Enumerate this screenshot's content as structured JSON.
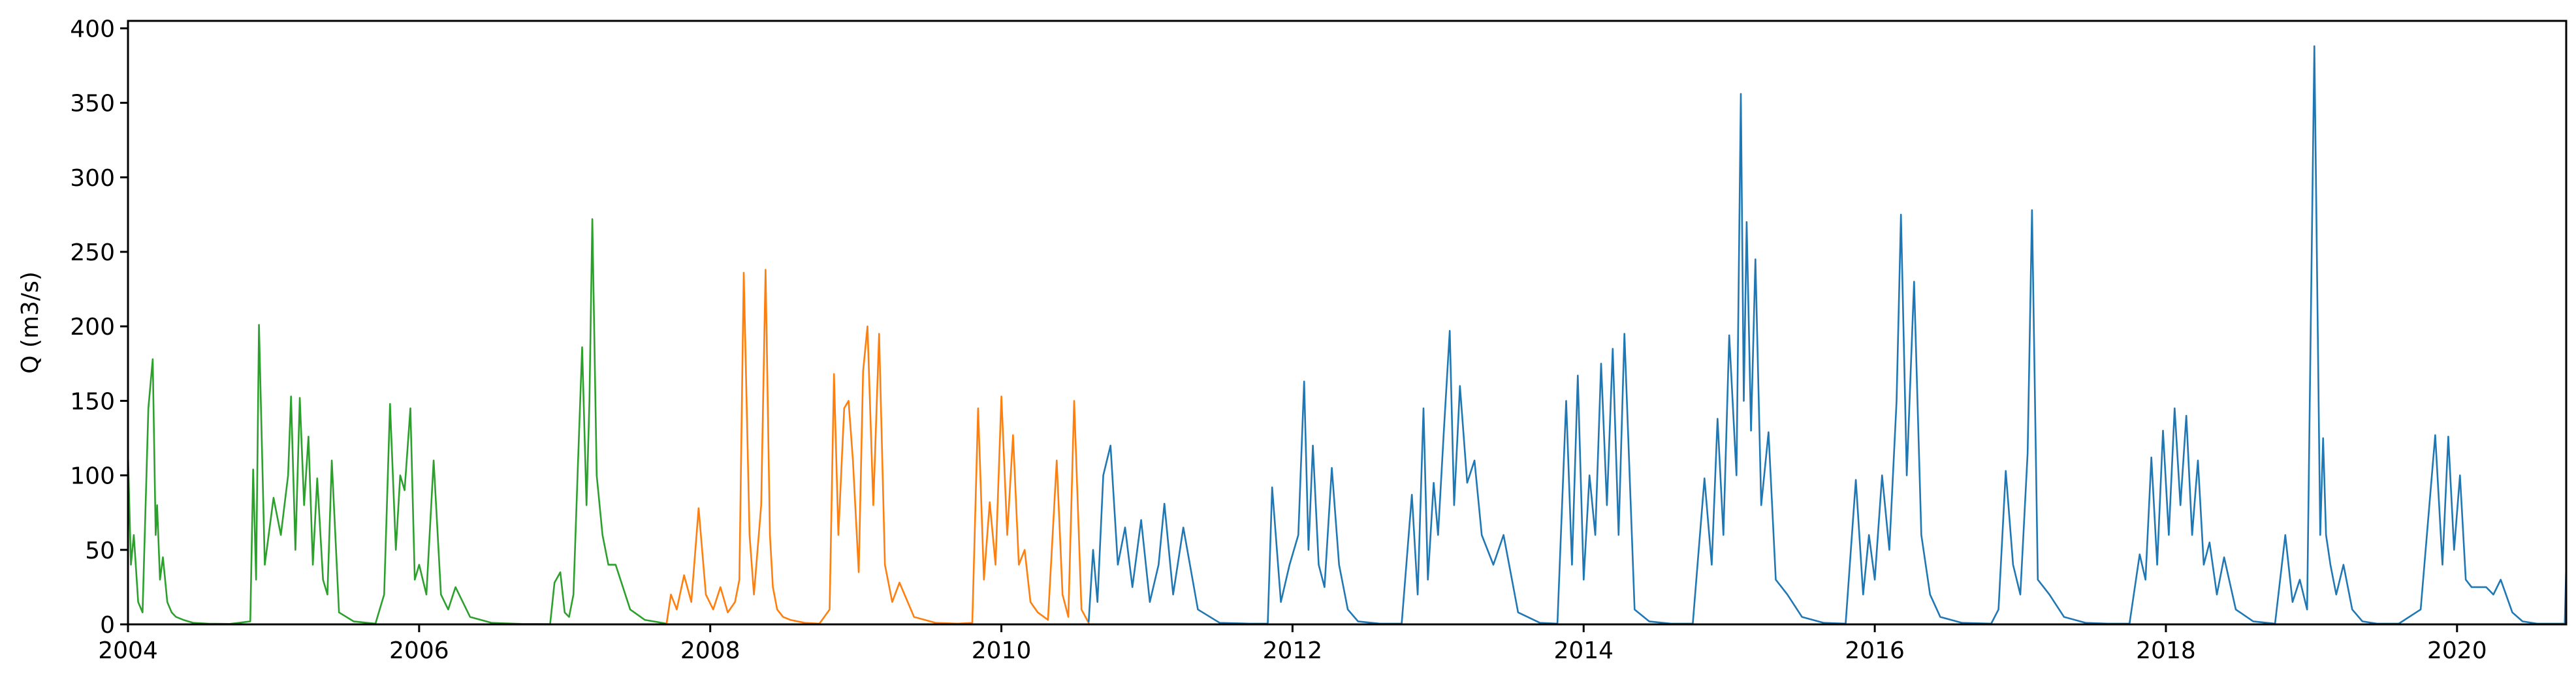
{
  "chart_data": {
    "type": "line",
    "title": "",
    "xlabel": "",
    "ylabel": "Q (m3/s)",
    "xlim": [
      2004.0,
      2020.75
    ],
    "ylim": [
      0,
      405
    ],
    "grid": false,
    "legend": "none",
    "x_ticks": [
      2004,
      2006,
      2008,
      2010,
      2012,
      2014,
      2016,
      2018,
      2020
    ],
    "x_tick_labels": [
      "2004",
      "2006",
      "2008",
      "2010",
      "2012",
      "2014",
      "2016",
      "2018",
      "2020"
    ],
    "y_ticks": [
      0,
      50,
      100,
      150,
      200,
      250,
      300,
      350,
      400
    ],
    "y_tick_labels": [
      "0",
      "50",
      "100",
      "150",
      "200",
      "250",
      "300",
      "350",
      "400"
    ],
    "series": [
      {
        "color": "#2ca02c",
        "x": [
          2004.0,
          2004.02,
          2004.04,
          2004.07,
          2004.1,
          2004.14,
          2004.17,
          2004.19,
          2004.2,
          2004.22,
          2004.24,
          2004.27,
          2004.3,
          2004.33,
          2004.38,
          2004.45,
          2004.55,
          2004.7,
          2004.84,
          2004.86,
          2004.88,
          2004.9,
          2004.94,
          2005.0,
          2005.05,
          2005.1,
          2005.12,
          2005.15,
          2005.18,
          2005.21,
          2005.24,
          2005.27,
          2005.3,
          2005.34,
          2005.37,
          2005.4,
          2005.45,
          2005.55,
          2005.7,
          2005.76,
          2005.8,
          2005.84,
          2005.87,
          2005.9,
          2005.94,
          2005.97,
          2006.0,
          2006.05,
          2006.1,
          2006.15,
          2006.2,
          2006.25,
          2006.35,
          2006.5,
          2006.7,
          2006.9,
          2006.93,
          2006.97,
          2007.0,
          2007.03,
          2007.06,
          2007.09,
          2007.12,
          2007.15,
          2007.17,
          2007.19,
          2007.22,
          2007.26,
          2007.3,
          2007.35,
          2007.45,
          2007.55,
          2007.7
        ],
        "y": [
          115,
          40,
          60,
          15,
          8,
          145,
          178,
          60,
          80,
          30,
          45,
          15,
          8,
          5,
          3,
          1,
          0.5,
          0.3,
          2,
          104,
          30,
          201,
          40,
          85,
          60,
          100,
          153,
          50,
          152,
          80,
          126,
          40,
          98,
          30,
          20,
          110,
          8,
          2,
          0.5,
          20,
          148,
          50,
          100,
          90,
          145,
          30,
          40,
          20,
          110,
          20,
          10,
          25,
          5,
          1,
          0.3,
          0.2,
          28,
          35,
          8,
          5,
          20,
          104,
          186,
          80,
          150,
          272,
          100,
          60,
          40,
          40,
          10,
          3,
          0.5
        ]
      },
      {
        "color": "#ff7f0e",
        "x": [
          2007.7,
          2007.73,
          2007.77,
          2007.82,
          2007.87,
          2007.92,
          2007.97,
          2008.02,
          2008.07,
          2008.12,
          2008.17,
          2008.2,
          2008.23,
          2008.27,
          2008.3,
          2008.35,
          2008.38,
          2008.41,
          2008.43,
          2008.46,
          2008.5,
          2008.55,
          2008.65,
          2008.75,
          2008.82,
          2008.85,
          2008.88,
          2008.92,
          2008.95,
          2008.98,
          2009.02,
          2009.05,
          2009.08,
          2009.12,
          2009.16,
          2009.2,
          2009.25,
          2009.3,
          2009.4,
          2009.55,
          2009.7,
          2009.8,
          2009.84,
          2009.88,
          2009.92,
          2009.96,
          2010.0,
          2010.04,
          2010.08,
          2010.12,
          2010.16,
          2010.2,
          2010.25,
          2010.32,
          2010.38,
          2010.42,
          2010.46,
          2010.5,
          2010.55,
          2010.6
        ],
        "y": [
          0.5,
          20,
          10,
          33,
          15,
          78,
          20,
          10,
          25,
          8,
          15,
          30,
          236,
          60,
          20,
          80,
          238,
          60,
          25,
          10,
          5,
          3,
          1,
          0.5,
          10,
          168,
          60,
          145,
          150,
          110,
          35,
          170,
          200,
          80,
          195,
          40,
          15,
          28,
          5,
          1,
          0.5,
          1,
          145,
          30,
          82,
          40,
          153,
          60,
          127,
          40,
          50,
          15,
          8,
          3,
          110,
          20,
          5,
          150,
          10,
          1
        ]
      },
      {
        "color": "#1f77b4",
        "x": [
          2010.6,
          2010.63,
          2010.66,
          2010.7,
          2010.75,
          2010.8,
          2010.85,
          2010.9,
          2010.96,
          2011.02,
          2011.08,
          2011.12,
          2011.18,
          2011.25,
          2011.35,
          2011.5,
          2011.7,
          2011.83,
          2011.86,
          2011.92,
          2011.98,
          2012.04,
          2012.08,
          2012.11,
          2012.14,
          2012.18,
          2012.22,
          2012.27,
          2012.32,
          2012.38,
          2012.45,
          2012.6,
          2012.75,
          2012.82,
          2012.86,
          2012.9,
          2012.93,
          2012.97,
          2013.0,
          2013.04,
          2013.08,
          2013.11,
          2013.15,
          2013.2,
          2013.25,
          2013.3,
          2013.38,
          2013.45,
          2013.55,
          2013.7,
          2013.82,
          2013.88,
          2013.92,
          2013.96,
          2014.0,
          2014.04,
          2014.08,
          2014.12,
          2014.16,
          2014.2,
          2014.24,
          2014.28,
          2014.35,
          2014.45,
          2014.6,
          2014.75,
          2014.83,
          2014.88,
          2014.92,
          2014.96,
          2015.0,
          2015.05,
          2015.08,
          2015.1,
          2015.12,
          2015.15,
          2015.18,
          2015.22,
          2015.27,
          2015.32,
          2015.4,
          2015.5,
          2015.65,
          2015.8,
          2015.87,
          2015.92,
          2015.96,
          2016.0,
          2016.05,
          2016.1,
          2016.15,
          2016.18,
          2016.22,
          2016.27,
          2016.32,
          2016.38,
          2016.45,
          2016.6,
          2016.8,
          2016.85,
          2016.9,
          2016.95,
          2017.0,
          2017.05,
          2017.08,
          2017.12,
          2017.2,
          2017.3,
          2017.45,
          2017.6,
          2017.75,
          2017.82,
          2017.86,
          2017.9,
          2017.94,
          2017.98,
          2018.02,
          2018.06,
          2018.1,
          2018.14,
          2018.18,
          2018.22,
          2018.26,
          2018.3,
          2018.35,
          2018.4,
          2018.48,
          2018.6,
          2018.75,
          2018.82,
          2018.87,
          2018.92,
          2018.97,
          2019.02,
          2019.06,
          2019.08,
          2019.1,
          2019.13,
          2019.17,
          2019.22,
          2019.28,
          2019.35,
          2019.45,
          2019.6,
          2019.75,
          2019.85,
          2019.9,
          2019.94,
          2019.98,
          2020.02,
          2020.06,
          2020.1,
          2020.15,
          2020.2,
          2020.25,
          2020.3,
          2020.38,
          2020.45,
          2020.55,
          2020.65,
          2020.74,
          2020.75
        ],
        "y": [
          2,
          50,
          15,
          100,
          120,
          40,
          65,
          25,
          70,
          15,
          40,
          81,
          20,
          65,
          10,
          1,
          0.5,
          0.5,
          92,
          15,
          40,
          60,
          163,
          50,
          120,
          40,
          25,
          105,
          40,
          10,
          2,
          0.5,
          0.5,
          87,
          20,
          145,
          30,
          95,
          60,
          130,
          197,
          80,
          160,
          95,
          110,
          60,
          40,
          60,
          8,
          1,
          0.5,
          150,
          40,
          167,
          30,
          100,
          60,
          175,
          80,
          185,
          60,
          195,
          10,
          2,
          0.5,
          0.5,
          98,
          40,
          138,
          60,
          194,
          100,
          356,
          150,
          270,
          130,
          245,
          80,
          129,
          30,
          20,
          5,
          1,
          0.5,
          97,
          20,
          60,
          30,
          100,
          50,
          150,
          275,
          100,
          230,
          60,
          20,
          5,
          1,
          0.5,
          10,
          103,
          40,
          20,
          115,
          278,
          30,
          20,
          5,
          1,
          0.5,
          0.5,
          47,
          30,
          112,
          40,
          130,
          60,
          145,
          80,
          140,
          60,
          110,
          40,
          55,
          20,
          45,
          10,
          2,
          0.5,
          60,
          15,
          30,
          10,
          388,
          60,
          125,
          60,
          40,
          20,
          40,
          10,
          2,
          0.5,
          0.5,
          10,
          127,
          40,
          126,
          50,
          100,
          30,
          25,
          25,
          25,
          20,
          30,
          8,
          2,
          0.5,
          0.5,
          0.5,
          39
        ]
      }
    ]
  }
}
